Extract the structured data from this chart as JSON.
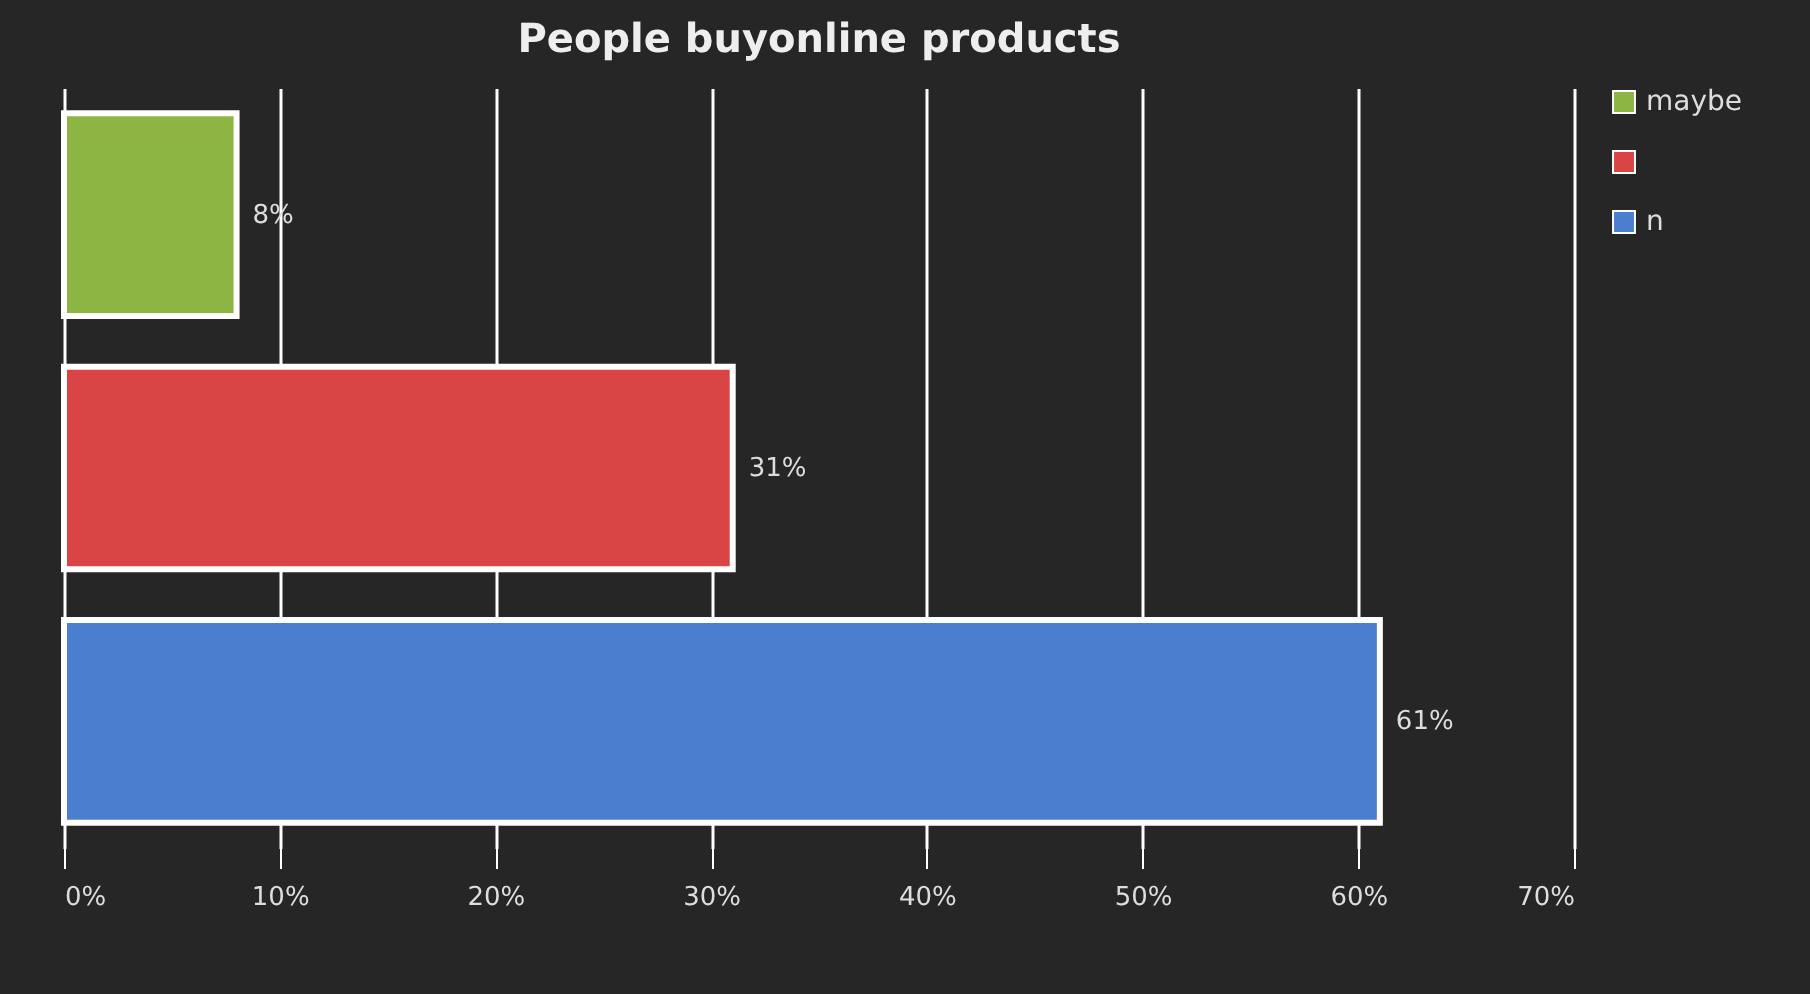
{
  "chart_data": {
    "type": "bar",
    "orientation": "horizontal",
    "title": "People buyonline products",
    "categories": [
      null,
      null,
      null
    ],
    "series": [
      {
        "name": "maybe",
        "color": "#8db543",
        "values": [
          8,
          null,
          null
        ],
        "value_labels": [
          "8%",
          null,
          null
        ]
      },
      {
        "color": "#d94545",
        "values": [
          null,
          31,
          null
        ],
        "value_labels": [
          null,
          "31%",
          null
        ]
      },
      {
        "name": "n",
        "color": "#4a7fcf",
        "values": [
          null,
          null,
          61
        ],
        "value_labels": [
          null,
          null,
          "61%"
        ]
      }
    ],
    "xlim": [
      0,
      70
    ],
    "xticks": [
      {
        "value": 0,
        "label": "0%"
      },
      {
        "value": 10,
        "label": "10%"
      },
      {
        "value": 20,
        "label": "20%"
      },
      {
        "value": 30,
        "label": "30%"
      },
      {
        "value": 40,
        "label": "40%"
      },
      {
        "value": 50,
        "label": "50%"
      },
      {
        "value": 60,
        "label": "60%"
      },
      {
        "value": 70,
        "label": "70%"
      }
    ],
    "grid": "x",
    "legend": "right"
  }
}
